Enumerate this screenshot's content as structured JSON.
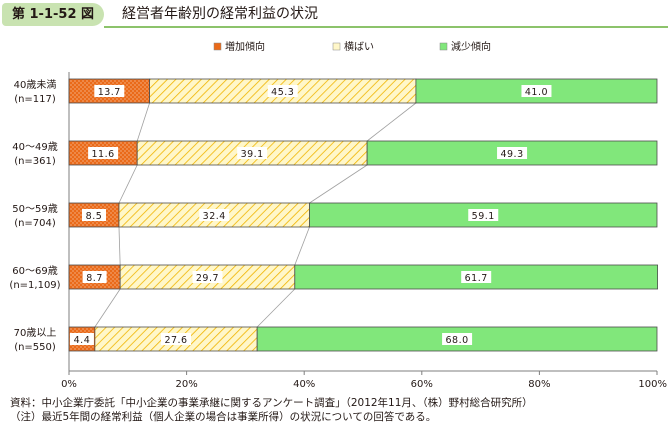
{
  "figure": {
    "number": "第 1-1-52 図",
    "title": "経営者年齢別の経常利益の状況"
  },
  "chart_data": {
    "type": "bar",
    "orientation": "horizontal",
    "stacked": true,
    "percent": true,
    "categories": [
      {
        "label": "40歳未満",
        "n": "(n=117)"
      },
      {
        "label": "40～49歳",
        "n": "(n=361)"
      },
      {
        "label": "50～59歳",
        "n": "(n=704)"
      },
      {
        "label": "60～69歳",
        "n": "(n=1,109)"
      },
      {
        "label": "70歳以上",
        "n": "(n=550)"
      }
    ],
    "series": [
      {
        "name": "増加傾向",
        "color": "#ea6a19",
        "pattern": "dots",
        "values": [
          13.7,
          11.6,
          8.5,
          8.7,
          4.4
        ]
      },
      {
        "name": "横ばい",
        "color": "#fff7c9",
        "pattern": "diagonal",
        "values": [
          45.3,
          39.1,
          32.4,
          29.7,
          27.6
        ]
      },
      {
        "name": "減少傾向",
        "color": "#81e77b",
        "pattern": "solid",
        "values": [
          41.0,
          49.3,
          59.1,
          61.7,
          68.0
        ]
      }
    ],
    "xlim": [
      0,
      100
    ],
    "xticks": [
      "0%",
      "20%",
      "40%",
      "60%",
      "80%",
      "100%"
    ],
    "legend_position": "top",
    "connector_lines": true,
    "grid": false
  },
  "notes": {
    "source": "資料：中小企業庁委託「中小企業の事業承継に関するアンケート調査」（2012年11月、（株）野村総合研究所）",
    "note": "（注）最近5年間の経常利益（個人企業の場合は事業所得）の状況についての回答である。"
  }
}
